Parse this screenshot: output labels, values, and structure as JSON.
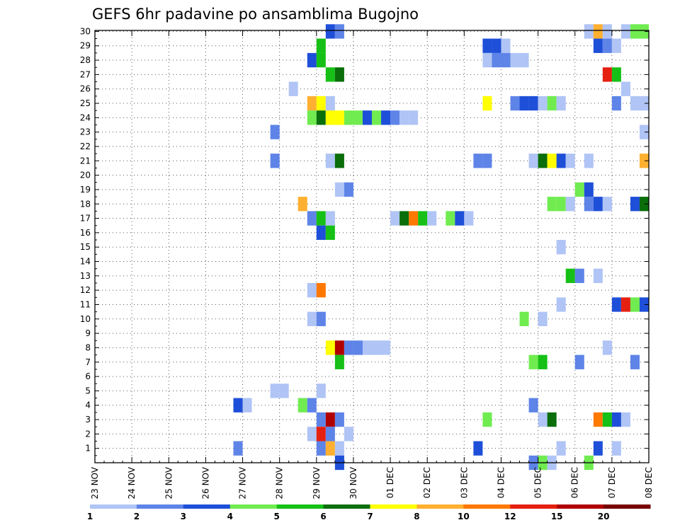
{
  "chart_data": {
    "type": "heatmap",
    "title": "GEFS 6hr padavine po ansamblima Bugojno",
    "xlabel": "",
    "ylabel": "",
    "x_tick_labels": [
      "23 NOV",
      "24 NOV",
      "25 NOV",
      "26 NOV",
      "27 NOV",
      "28 NOV",
      "29 NOV",
      "30 NOV",
      "01 DEC",
      "02 DEC",
      "03 DEC",
      "04 DEC",
      "05 DEC",
      "06 DEC",
      "07 DEC",
      "08 DEC"
    ],
    "y_tick_labels": [
      "1",
      "2",
      "3",
      "4",
      "5",
      "6",
      "7",
      "8",
      "9",
      "10",
      "11",
      "12",
      "13",
      "14",
      "15",
      "16",
      "17",
      "18",
      "19",
      "20",
      "21",
      "22",
      "23",
      "24",
      "25",
      "26",
      "27",
      "28",
      "29",
      "30"
    ],
    "y_range": [
      0,
      30
    ],
    "x_range_days": [
      0,
      15
    ],
    "grid": true,
    "colorbar": {
      "levels": [
        "1",
        "2",
        "3",
        "4",
        "5",
        "6",
        "7",
        "8",
        "10",
        "12",
        "15",
        "20"
      ],
      "colors": [
        "#b0c4f5",
        "#5e84e8",
        "#1e4fd8",
        "#70ec50",
        "#16c016",
        "#0a6e0a",
        "#ffff00",
        "#ffb030",
        "#ff7800",
        "#e52010",
        "#b00000",
        "#780000"
      ]
    },
    "cells": [
      {
        "m": 30,
        "t": 25,
        "c": 3
      },
      {
        "m": 30,
        "t": 26,
        "c": 2
      },
      {
        "m": 30,
        "t": 53,
        "c": 1
      },
      {
        "m": 30,
        "t": 54,
        "c": 8
      },
      {
        "m": 30,
        "t": 55,
        "c": 1
      },
      {
        "m": 30,
        "t": 57,
        "c": 1
      },
      {
        "m": 30,
        "t": 58,
        "c": 4
      },
      {
        "m": 30,
        "t": 59,
        "c": 4
      },
      {
        "m": 30,
        "t": 60,
        "c": 5
      },
      {
        "m": 29,
        "t": 24,
        "c": 5
      },
      {
        "m": 29,
        "t": 42,
        "c": 3
      },
      {
        "m": 29,
        "t": 43,
        "c": 3
      },
      {
        "m": 29,
        "t": 44,
        "c": 1
      },
      {
        "m": 29,
        "t": 54,
        "c": 3
      },
      {
        "m": 29,
        "t": 55,
        "c": 2
      },
      {
        "m": 29,
        "t": 56,
        "c": 1
      },
      {
        "m": 28,
        "t": 23,
        "c": 3
      },
      {
        "m": 28,
        "t": 24,
        "c": 5
      },
      {
        "m": 28,
        "t": 42,
        "c": 1
      },
      {
        "m": 28,
        "t": 43,
        "c": 2
      },
      {
        "m": 28,
        "t": 44,
        "c": 2
      },
      {
        "m": 28,
        "t": 45,
        "c": 1
      },
      {
        "m": 28,
        "t": 46,
        "c": 1
      },
      {
        "m": 27,
        "t": 25,
        "c": 5
      },
      {
        "m": 27,
        "t": 26,
        "c": 6
      },
      {
        "m": 27,
        "t": 55,
        "c": 10
      },
      {
        "m": 27,
        "t": 56,
        "c": 5
      },
      {
        "m": 26,
        "t": 21,
        "c": 1
      },
      {
        "m": 26,
        "t": 57,
        "c": 1
      },
      {
        "m": 25,
        "t": 23,
        "c": 8
      },
      {
        "m": 25,
        "t": 24,
        "c": 7
      },
      {
        "m": 25,
        "t": 25,
        "c": 1
      },
      {
        "m": 25,
        "t": 42,
        "c": 7
      },
      {
        "m": 25,
        "t": 45,
        "c": 2
      },
      {
        "m": 25,
        "t": 46,
        "c": 3
      },
      {
        "m": 25,
        "t": 47,
        "c": 3
      },
      {
        "m": 25,
        "t": 48,
        "c": 1
      },
      {
        "m": 25,
        "t": 49,
        "c": 4
      },
      {
        "m": 25,
        "t": 50,
        "c": 1
      },
      {
        "m": 25,
        "t": 56,
        "c": 2
      },
      {
        "m": 25,
        "t": 58,
        "c": 1
      },
      {
        "m": 25,
        "t": 59,
        "c": 1
      },
      {
        "m": 24,
        "t": 23,
        "c": 4
      },
      {
        "m": 24,
        "t": 24,
        "c": 6
      },
      {
        "m": 24,
        "t": 25,
        "c": 7
      },
      {
        "m": 24,
        "t": 26,
        "c": 7
      },
      {
        "m": 24,
        "t": 27,
        "c": 4
      },
      {
        "m": 24,
        "t": 28,
        "c": 4
      },
      {
        "m": 24,
        "t": 29,
        "c": 3
      },
      {
        "m": 24,
        "t": 30,
        "c": 4
      },
      {
        "m": 24,
        "t": 31,
        "c": 3
      },
      {
        "m": 24,
        "t": 32,
        "c": 2
      },
      {
        "m": 24,
        "t": 33,
        "c": 1
      },
      {
        "m": 24,
        "t": 34,
        "c": 1
      },
      {
        "m": 23,
        "t": 19,
        "c": 2
      },
      {
        "m": 23,
        "t": 59,
        "c": 1
      },
      {
        "m": 21,
        "t": 19,
        "c": 2
      },
      {
        "m": 21,
        "t": 25,
        "c": 1
      },
      {
        "m": 21,
        "t": 26,
        "c": 6
      },
      {
        "m": 21,
        "t": 41,
        "c": 2
      },
      {
        "m": 21,
        "t": 42,
        "c": 2
      },
      {
        "m": 21,
        "t": 47,
        "c": 1
      },
      {
        "m": 21,
        "t": 48,
        "c": 6
      },
      {
        "m": 21,
        "t": 49,
        "c": 7
      },
      {
        "m": 21,
        "t": 50,
        "c": 3
      },
      {
        "m": 21,
        "t": 51,
        "c": 1
      },
      {
        "m": 21,
        "t": 53,
        "c": 1
      },
      {
        "m": 21,
        "t": 59,
        "c": 8
      },
      {
        "m": 21,
        "t": 60,
        "c": 1
      },
      {
        "m": 19,
        "t": 26,
        "c": 1
      },
      {
        "m": 19,
        "t": 27,
        "c": 2
      },
      {
        "m": 19,
        "t": 52,
        "c": 4
      },
      {
        "m": 19,
        "t": 53,
        "c": 3
      },
      {
        "m": 18,
        "t": 22,
        "c": 8
      },
      {
        "m": 18,
        "t": 49,
        "c": 4
      },
      {
        "m": 18,
        "t": 50,
        "c": 4
      },
      {
        "m": 18,
        "t": 51,
        "c": 1
      },
      {
        "m": 18,
        "t": 53,
        "c": 2
      },
      {
        "m": 18,
        "t": 54,
        "c": 3
      },
      {
        "m": 18,
        "t": 55,
        "c": 1
      },
      {
        "m": 18,
        "t": 58,
        "c": 3
      },
      {
        "m": 18,
        "t": 59,
        "c": 6
      },
      {
        "m": 17,
        "t": 23,
        "c": 2
      },
      {
        "m": 17,
        "t": 24,
        "c": 5
      },
      {
        "m": 17,
        "t": 25,
        "c": 1
      },
      {
        "m": 17,
        "t": 32,
        "c": 1
      },
      {
        "m": 17,
        "t": 33,
        "c": 6
      },
      {
        "m": 17,
        "t": 34,
        "c": 9
      },
      {
        "m": 17,
        "t": 35,
        "c": 5
      },
      {
        "m": 17,
        "t": 36,
        "c": 1
      },
      {
        "m": 17,
        "t": 38,
        "c": 4
      },
      {
        "m": 17,
        "t": 39,
        "c": 3
      },
      {
        "m": 17,
        "t": 40,
        "c": 1
      },
      {
        "m": 16,
        "t": 24,
        "c": 3
      },
      {
        "m": 16,
        "t": 25,
        "c": 5
      },
      {
        "m": 15,
        "t": 50,
        "c": 1
      },
      {
        "m": 14,
        "t": 60,
        "c": 8
      },
      {
        "m": 13,
        "t": 51,
        "c": 5
      },
      {
        "m": 13,
        "t": 52,
        "c": 2
      },
      {
        "m": 13,
        "t": 54,
        "c": 1
      },
      {
        "m": 12,
        "t": 23,
        "c": 1
      },
      {
        "m": 12,
        "t": 24,
        "c": 9
      },
      {
        "m": 11,
        "t": 50,
        "c": 1
      },
      {
        "m": 11,
        "t": 56,
        "c": 3
      },
      {
        "m": 11,
        "t": 57,
        "c": 10
      },
      {
        "m": 11,
        "t": 58,
        "c": 4
      },
      {
        "m": 11,
        "t": 59,
        "c": 3
      },
      {
        "m": 10,
        "t": 23,
        "c": 1
      },
      {
        "m": 10,
        "t": 24,
        "c": 2
      },
      {
        "m": 10,
        "t": 46,
        "c": 4
      },
      {
        "m": 10,
        "t": 48,
        "c": 1
      },
      {
        "m": 8,
        "t": 25,
        "c": 7
      },
      {
        "m": 8,
        "t": 26,
        "c": 11
      },
      {
        "m": 8,
        "t": 27,
        "c": 2
      },
      {
        "m": 8,
        "t": 28,
        "c": 2
      },
      {
        "m": 8,
        "t": 29,
        "c": 1
      },
      {
        "m": 8,
        "t": 30,
        "c": 1
      },
      {
        "m": 8,
        "t": 31,
        "c": 1
      },
      {
        "m": 8,
        "t": 55,
        "c": 1
      },
      {
        "m": 7,
        "t": 26,
        "c": 5
      },
      {
        "m": 7,
        "t": 47,
        "c": 4
      },
      {
        "m": 7,
        "t": 48,
        "c": 5
      },
      {
        "m": 7,
        "t": 52,
        "c": 2
      },
      {
        "m": 7,
        "t": 58,
        "c": 2
      },
      {
        "m": 5,
        "t": 19,
        "c": 1
      },
      {
        "m": 5,
        "t": 20,
        "c": 1
      },
      {
        "m": 5,
        "t": 24,
        "c": 1
      },
      {
        "m": 4,
        "t": 15,
        "c": 3
      },
      {
        "m": 4,
        "t": 16,
        "c": 1
      },
      {
        "m": 4,
        "t": 22,
        "c": 4
      },
      {
        "m": 4,
        "t": 23,
        "c": 2
      },
      {
        "m": 4,
        "t": 47,
        "c": 2
      },
      {
        "m": 3,
        "t": 24,
        "c": 2
      },
      {
        "m": 3,
        "t": 25,
        "c": 11
      },
      {
        "m": 3,
        "t": 26,
        "c": 2
      },
      {
        "m": 3,
        "t": 42,
        "c": 4
      },
      {
        "m": 3,
        "t": 48,
        "c": 1
      },
      {
        "m": 3,
        "t": 49,
        "c": 6
      },
      {
        "m": 3,
        "t": 54,
        "c": 9
      },
      {
        "m": 3,
        "t": 55,
        "c": 5
      },
      {
        "m": 3,
        "t": 56,
        "c": 3
      },
      {
        "m": 3,
        "t": 57,
        "c": 1
      },
      {
        "m": 2,
        "t": 23,
        "c": 1
      },
      {
        "m": 2,
        "t": 24,
        "c": 10
      },
      {
        "m": 2,
        "t": 25,
        "c": 2
      },
      {
        "m": 2,
        "t": 27,
        "c": 1
      },
      {
        "m": 1,
        "t": 15,
        "c": 2
      },
      {
        "m": 1,
        "t": 24,
        "c": 2
      },
      {
        "m": 1,
        "t": 25,
        "c": 8
      },
      {
        "m": 1,
        "t": 26,
        "c": 1
      },
      {
        "m": 1,
        "t": 41,
        "c": 3
      },
      {
        "m": 1,
        "t": 50,
        "c": 1
      },
      {
        "m": 1,
        "t": 54,
        "c": 3
      },
      {
        "m": 1,
        "t": 56,
        "c": 1
      },
      {
        "m": 0,
        "t": 26,
        "c": 3
      },
      {
        "m": 0,
        "t": 47,
        "c": 2
      },
      {
        "m": 0,
        "t": 48,
        "c": 4
      },
      {
        "m": 0,
        "t": 49,
        "c": 1
      },
      {
        "m": 0,
        "t": 53,
        "c": 4
      },
      {
        "m": 0,
        "t": 60,
        "c": 2
      }
    ]
  }
}
